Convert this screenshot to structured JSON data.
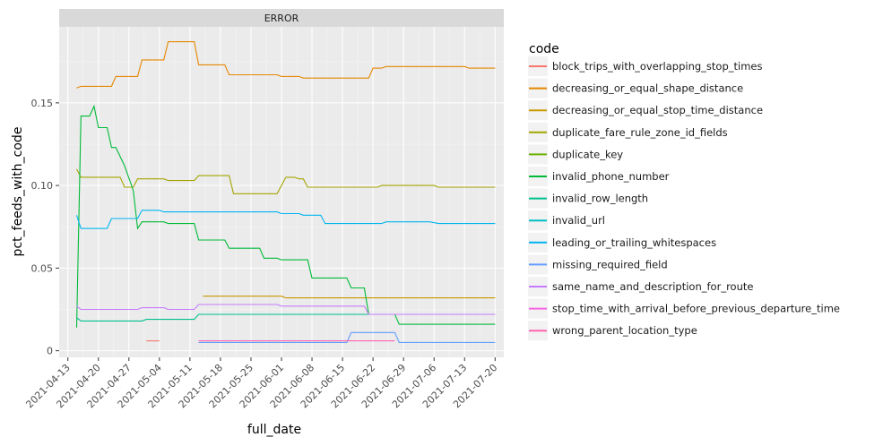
{
  "chart_data": {
    "type": "line",
    "facet_label": "ERROR",
    "xlabel": "full_date",
    "ylabel": "pct_feeds_with_code",
    "legend_title": "code",
    "legend_position": "right",
    "grid": true,
    "xlim": [
      "2021-04-11",
      "2021-07-22"
    ],
    "ylim": [
      -0.004,
      0.196
    ],
    "x_ticks": [
      "2021-04-13",
      "2021-04-20",
      "2021-04-27",
      "2021-05-04",
      "2021-05-11",
      "2021-05-18",
      "2021-05-25",
      "2021-06-01",
      "2021-06-08",
      "2021-06-15",
      "2021-06-22",
      "2021-06-29",
      "2021-07-06",
      "2021-07-13",
      "2021-07-20"
    ],
    "y_ticks": [
      0,
      0.05,
      0.1,
      0.15
    ],
    "y_tick_labels": [
      "0",
      "0.05",
      "0.10",
      "0.15"
    ],
    "series": [
      {
        "name": "block_trips_with_overlapping_stop_times",
        "color": "#F8766D",
        "points": [
          [
            "2021-05-01",
            0.006
          ],
          [
            "2021-05-04",
            0.006
          ]
        ]
      },
      {
        "name": "decreasing_or_equal_shape_distance",
        "color": "#E58700",
        "points": [
          [
            "2021-04-15",
            0.159
          ],
          [
            "2021-04-16",
            0.16
          ],
          [
            "2021-04-23",
            0.16
          ],
          [
            "2021-04-24",
            0.166
          ],
          [
            "2021-04-29",
            0.166
          ],
          [
            "2021-04-30",
            0.176
          ],
          [
            "2021-05-05",
            0.176
          ],
          [
            "2021-05-06",
            0.187
          ],
          [
            "2021-05-12",
            0.187
          ],
          [
            "2021-05-13",
            0.173
          ],
          [
            "2021-05-19",
            0.173
          ],
          [
            "2021-05-20",
            0.167
          ],
          [
            "2021-05-31",
            0.167
          ],
          [
            "2021-06-01",
            0.166
          ],
          [
            "2021-06-05",
            0.166
          ],
          [
            "2021-06-06",
            0.165
          ],
          [
            "2021-06-21",
            0.165
          ],
          [
            "2021-06-22",
            0.171
          ],
          [
            "2021-06-24",
            0.171
          ],
          [
            "2021-06-25",
            0.172
          ],
          [
            "2021-07-13",
            0.172
          ],
          [
            "2021-07-14",
            0.171
          ],
          [
            "2021-07-20",
            0.171
          ]
        ]
      },
      {
        "name": "decreasing_or_equal_stop_time_distance",
        "color": "#C99800",
        "points": [
          [
            "2021-05-14",
            0.033
          ],
          [
            "2021-06-01",
            0.033
          ],
          [
            "2021-06-02",
            0.032
          ],
          [
            "2021-07-20",
            0.032
          ]
        ]
      },
      {
        "name": "duplicate_fare_rule_zone_id_fields",
        "color": "#A3A500",
        "points": [
          [
            "2021-04-15",
            0.11
          ],
          [
            "2021-04-16",
            0.105
          ],
          [
            "2021-04-25",
            0.105
          ],
          [
            "2021-04-26",
            0.099
          ],
          [
            "2021-04-28",
            0.099
          ],
          [
            "2021-04-29",
            0.104
          ],
          [
            "2021-05-05",
            0.104
          ],
          [
            "2021-05-06",
            0.103
          ],
          [
            "2021-05-12",
            0.103
          ],
          [
            "2021-05-13",
            0.106
          ],
          [
            "2021-05-20",
            0.106
          ],
          [
            "2021-05-21",
            0.095
          ],
          [
            "2021-05-31",
            0.095
          ],
          [
            "2021-06-02",
            0.105
          ],
          [
            "2021-06-04",
            0.105
          ],
          [
            "2021-06-05",
            0.104
          ],
          [
            "2021-06-06",
            0.104
          ],
          [
            "2021-06-07",
            0.099
          ],
          [
            "2021-06-23",
            0.099
          ],
          [
            "2021-06-24",
            0.1
          ],
          [
            "2021-07-06",
            0.1
          ],
          [
            "2021-07-07",
            0.099
          ],
          [
            "2021-07-20",
            0.099
          ]
        ]
      },
      {
        "name": "duplicate_key",
        "color": "#6BB100",
        "points": []
      },
      {
        "name": "invalid_phone_number",
        "color": "#00BA38",
        "points": [
          [
            "2021-04-15",
            0.014
          ],
          [
            "2021-04-16",
            0.142
          ],
          [
            "2021-04-18",
            0.142
          ],
          [
            "2021-04-19",
            0.148
          ],
          [
            "2021-04-20",
            0.135
          ],
          [
            "2021-04-22",
            0.135
          ],
          [
            "2021-04-23",
            0.123
          ],
          [
            "2021-04-24",
            0.123
          ],
          [
            "2021-04-26",
            0.112
          ],
          [
            "2021-04-28",
            0.097
          ],
          [
            "2021-04-29",
            0.074
          ],
          [
            "2021-04-30",
            0.078
          ],
          [
            "2021-05-05",
            0.078
          ],
          [
            "2021-05-06",
            0.077
          ],
          [
            "2021-05-12",
            0.077
          ],
          [
            "2021-05-13",
            0.067
          ],
          [
            "2021-05-19",
            0.067
          ],
          [
            "2021-05-20",
            0.062
          ],
          [
            "2021-05-27",
            0.062
          ],
          [
            "2021-05-28",
            0.056
          ],
          [
            "2021-05-31",
            0.056
          ],
          [
            "2021-06-01",
            0.055
          ],
          [
            "2021-06-07",
            0.055
          ],
          [
            "2021-06-08",
            0.044
          ],
          [
            "2021-06-16",
            0.044
          ],
          [
            "2021-06-17",
            0.038
          ],
          [
            "2021-06-20",
            0.038
          ],
          [
            "2021-06-21",
            0.022
          ],
          [
            "2021-06-27",
            0.022
          ],
          [
            "2021-06-28",
            0.016
          ],
          [
            "2021-07-20",
            0.016
          ]
        ]
      },
      {
        "name": "invalid_row_length",
        "color": "#00C08B",
        "points": [
          [
            "2021-04-15",
            0.02
          ],
          [
            "2021-04-16",
            0.018
          ],
          [
            "2021-04-30",
            0.018
          ],
          [
            "2021-05-01",
            0.019
          ],
          [
            "2021-05-06",
            0.019
          ],
          [
            "2021-05-07",
            0.019
          ],
          [
            "2021-05-12",
            0.019
          ],
          [
            "2021-05-13",
            0.022
          ],
          [
            "2021-06-01",
            0.022
          ],
          [
            "2021-06-02",
            0.022
          ],
          [
            "2021-06-20",
            0.022
          ],
          [
            "2021-06-21",
            0.022
          ],
          [
            "2021-07-20",
            0.022
          ]
        ]
      },
      {
        "name": "invalid_url",
        "color": "#00BFC4",
        "points": []
      },
      {
        "name": "leading_or_trailing_whitespaces",
        "color": "#00B4EF",
        "points": [
          [
            "2021-04-15",
            0.082
          ],
          [
            "2021-04-16",
            0.074
          ],
          [
            "2021-04-22",
            0.074
          ],
          [
            "2021-04-23",
            0.08
          ],
          [
            "2021-04-29",
            0.08
          ],
          [
            "2021-04-30",
            0.085
          ],
          [
            "2021-05-04",
            0.085
          ],
          [
            "2021-05-05",
            0.084
          ],
          [
            "2021-05-31",
            0.084
          ],
          [
            "2021-06-01",
            0.083
          ],
          [
            "2021-06-05",
            0.083
          ],
          [
            "2021-06-06",
            0.082
          ],
          [
            "2021-06-10",
            0.082
          ],
          [
            "2021-06-11",
            0.077
          ],
          [
            "2021-06-23",
            0.077
          ],
          [
            "2021-06-24",
            0.077
          ],
          [
            "2021-06-25",
            0.078
          ],
          [
            "2021-07-05",
            0.078
          ],
          [
            "2021-07-07",
            0.077
          ],
          [
            "2021-07-20",
            0.077
          ]
        ]
      },
      {
        "name": "missing_required_field",
        "color": "#619CFF",
        "points": [
          [
            "2021-05-13",
            0.005
          ],
          [
            "2021-06-16",
            0.005
          ],
          [
            "2021-06-17",
            0.011
          ],
          [
            "2021-06-27",
            0.011
          ],
          [
            "2021-06-28",
            0.005
          ],
          [
            "2021-07-20",
            0.005
          ]
        ]
      },
      {
        "name": "same_name_and_description_for_route",
        "color": "#C77CFF",
        "points": [
          [
            "2021-04-15",
            0.027
          ],
          [
            "2021-04-16",
            0.025
          ],
          [
            "2021-04-29",
            0.025
          ],
          [
            "2021-04-30",
            0.026
          ],
          [
            "2021-05-05",
            0.026
          ],
          [
            "2021-05-06",
            0.025
          ],
          [
            "2021-05-12",
            0.025
          ],
          [
            "2021-05-13",
            0.028
          ],
          [
            "2021-05-31",
            0.028
          ],
          [
            "2021-06-01",
            0.027
          ],
          [
            "2021-06-20",
            0.027
          ],
          [
            "2021-06-21",
            0.022
          ],
          [
            "2021-07-20",
            0.022
          ]
        ]
      },
      {
        "name": "stop_time_with_arrival_before_previous_departure_time",
        "color": "#F564E3",
        "points": []
      },
      {
        "name": "wrong_parent_location_type",
        "color": "#FF64B0",
        "points": [
          [
            "2021-05-13",
            0.006
          ],
          [
            "2021-06-27",
            0.006
          ]
        ]
      }
    ]
  }
}
